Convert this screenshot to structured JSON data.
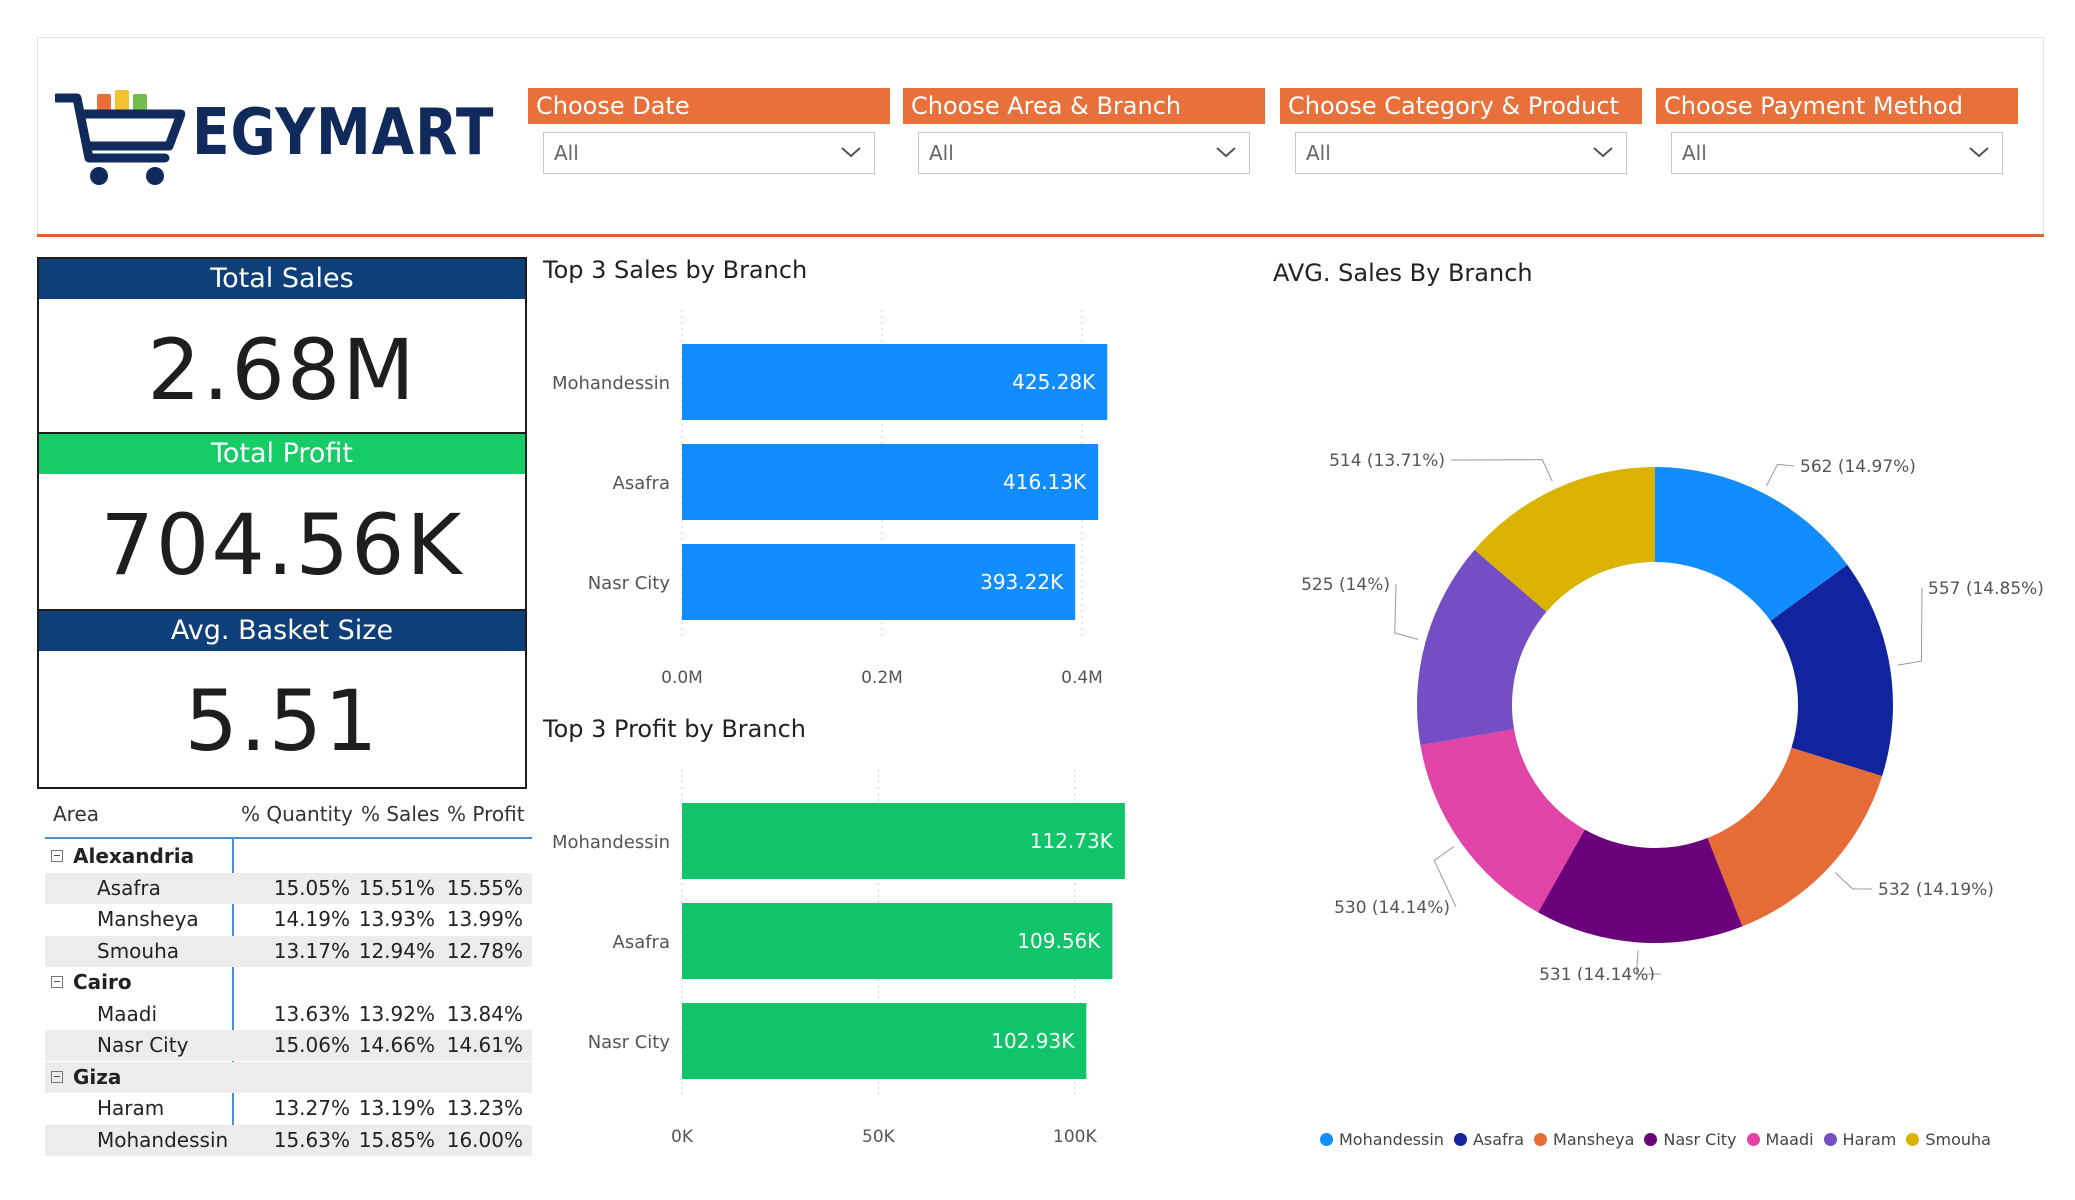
{
  "brand": {
    "name": "EGYMART"
  },
  "filters": [
    {
      "label": "Choose Date",
      "value": "All"
    },
    {
      "label": "Choose Area & Branch",
      "value": "All"
    },
    {
      "label": "Choose Category & Product",
      "value": "All"
    },
    {
      "label": "Choose Payment Method",
      "value": "All"
    }
  ],
  "kpis": [
    {
      "label": "Total Sales",
      "value": "2.68M",
      "color": "#0f3f78"
    },
    {
      "label": "Total Profit",
      "value": "704.56K",
      "color": "#16cc66"
    },
    {
      "label": "Avg. Basket Size",
      "value": "5.51",
      "color": "#0f3f78"
    }
  ],
  "table": {
    "headers": [
      "Area",
      "% Quantity",
      "% Sales",
      "% Profit"
    ],
    "groups": [
      {
        "name": "Alexandria",
        "rows": [
          {
            "name": "Asafra",
            "q": "15.05%",
            "s": "15.51%",
            "p": "15.55%"
          },
          {
            "name": "Mansheya",
            "q": "14.19%",
            "s": "13.93%",
            "p": "13.99%"
          },
          {
            "name": "Smouha",
            "q": "13.17%",
            "s": "12.94%",
            "p": "12.78%"
          }
        ]
      },
      {
        "name": "Cairo",
        "rows": [
          {
            "name": "Maadi",
            "q": "13.63%",
            "s": "13.92%",
            "p": "13.84%"
          },
          {
            "name": "Nasr City",
            "q": "15.06%",
            "s": "14.66%",
            "p": "14.61%"
          }
        ]
      },
      {
        "name": "Giza",
        "rows": [
          {
            "name": "Haram",
            "q": "13.27%",
            "s": "13.19%",
            "p": "13.23%"
          },
          {
            "name": "Mohandessin",
            "q": "15.63%",
            "s": "15.85%",
            "p": "16.00%"
          }
        ]
      }
    ]
  },
  "chart_data": [
    {
      "type": "bar",
      "orientation": "horizontal",
      "title": "Top 3 Sales by Branch",
      "categories": [
        "Mohandessin",
        "Asafra",
        "Nasr City"
      ],
      "values": [
        425280,
        416130,
        393220
      ],
      "data_labels": [
        "425.28K",
        "416.13K",
        "393.22K"
      ],
      "xticks": [
        "0.0M",
        "0.2M",
        "0.4M"
      ],
      "xtick_values": [
        0,
        200000,
        400000
      ],
      "xlim": [
        0,
        440000
      ],
      "color": "#118dff",
      "grid": true
    },
    {
      "type": "bar",
      "orientation": "horizontal",
      "title": "Top 3 Profit by Branch",
      "categories": [
        "Mohandessin",
        "Asafra",
        "Nasr City"
      ],
      "values": [
        112730,
        109560,
        102930
      ],
      "data_labels": [
        "112.73K",
        "109.56K",
        "102.93K"
      ],
      "xticks": [
        "0K",
        "50K",
        "100K"
      ],
      "xtick_values": [
        0,
        50000,
        100000
      ],
      "xlim": [
        0,
        112000
      ],
      "color": "#11c46a",
      "grid": true
    },
    {
      "type": "pie",
      "style": "donut",
      "title": "AVG. Sales By Branch",
      "slices": [
        {
          "name": "Mohandessin",
          "value": 562,
          "label": "562 (14.97%)",
          "color": "#118dff"
        },
        {
          "name": "Asafra",
          "value": 557,
          "label": "557 (14.85%)",
          "color": "#12239e"
        },
        {
          "name": "Mansheya",
          "value": 532,
          "label": "532 (14.19%)",
          "color": "#e66c37"
        },
        {
          "name": "Nasr City",
          "value": 531,
          "label": "531 (14.14%)",
          "color": "#6b007b"
        },
        {
          "name": "Maadi",
          "value": 530,
          "label": "530 (14.14%)",
          "color": "#e044a7"
        },
        {
          "name": "Haram",
          "value": 525,
          "label": "525 (14%)",
          "color": "#744ec2"
        },
        {
          "name": "Smouha",
          "value": 514,
          "label": "514 (13.71%)",
          "color": "#d9b300"
        }
      ],
      "legend": "bottom"
    }
  ]
}
